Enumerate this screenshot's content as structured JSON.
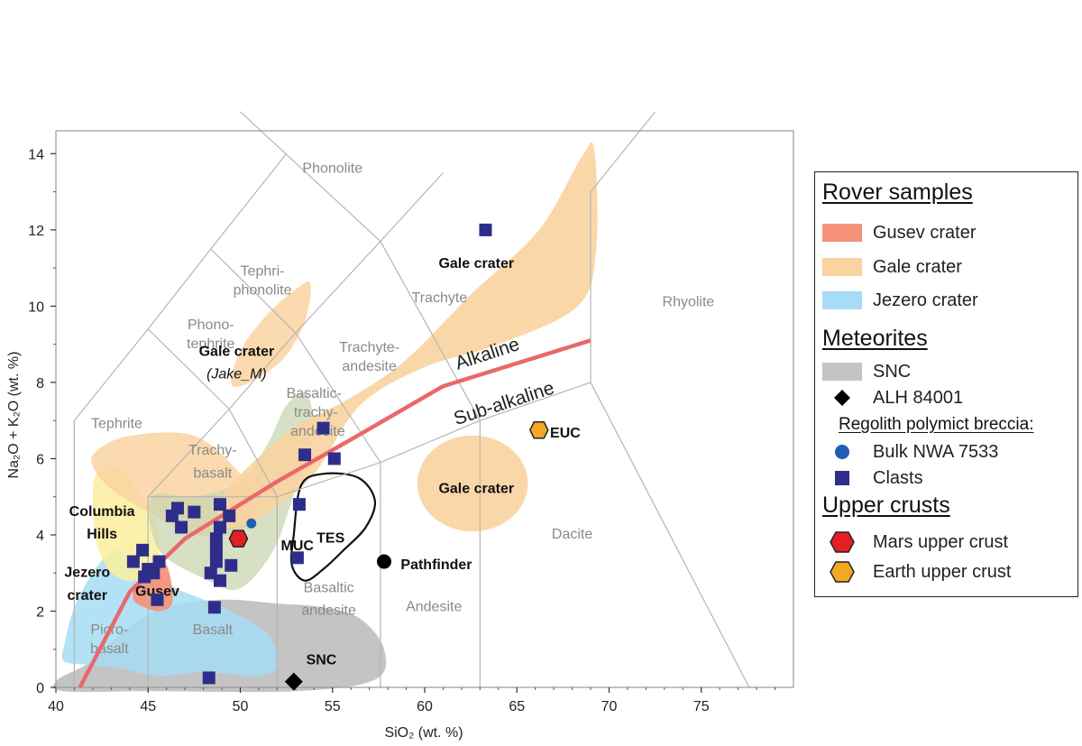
{
  "chart_data": {
    "type": "scatter",
    "xlabel": "SiO₂ (wt. %)",
    "ylabel": "Na₂O + K₂O (wt. %)",
    "xlim": [
      40,
      80
    ],
    "ylim": [
      0,
      14
    ],
    "x_ticks": [
      40,
      45,
      50,
      55,
      60,
      65,
      70,
      75
    ],
    "y_ticks": [
      0,
      2,
      4,
      6,
      8,
      10,
      12,
      14
    ],
    "tas_fields": [
      {
        "label": "Phonolite"
      },
      {
        "label": "Tephri-phonolite"
      },
      {
        "label": "Phono-tephrite"
      },
      {
        "label": "Tephrite"
      },
      {
        "label": "Trachyte"
      },
      {
        "label": "Trachyte-andesite"
      },
      {
        "label": "Basaltic-trachy-andesite"
      },
      {
        "label": "Trachy-basalt"
      },
      {
        "label": "Rhyolite"
      },
      {
        "label": "Dacite"
      },
      {
        "label": "Andesite"
      },
      {
        "label": "Basaltic andesite"
      },
      {
        "label": "Basalt"
      },
      {
        "label": "Picro-basalt"
      }
    ],
    "alkaline_divider": {
      "points": [
        [
          41.3,
          0
        ],
        [
          44,
          2.5
        ],
        [
          47,
          3.9
        ],
        [
          52,
          5.4
        ],
        [
          56,
          6.5
        ],
        [
          61,
          7.9
        ],
        [
          69,
          9.1
        ]
      ],
      "label_above": "Alkaline",
      "label_below": "Sub-alkaline"
    },
    "series": [
      {
        "name": "Clasts",
        "marker": "square",
        "color": "#2e2e8a",
        "points": [
          [
            63.3,
            12.0
          ],
          [
            54.5,
            6.8
          ],
          [
            53.5,
            6.1
          ],
          [
            55.1,
            6.0
          ],
          [
            53.2,
            4.8
          ],
          [
            46.6,
            4.7
          ],
          [
            46.3,
            4.5
          ],
          [
            47.5,
            4.6
          ],
          [
            48.9,
            4.8
          ],
          [
            49.4,
            4.5
          ],
          [
            46.8,
            4.2
          ],
          [
            48.9,
            4.2
          ],
          [
            48.7,
            3.9
          ],
          [
            48.7,
            3.6
          ],
          [
            48.7,
            3.3
          ],
          [
            49.5,
            3.2
          ],
          [
            44.7,
            3.6
          ],
          [
            44.2,
            3.3
          ],
          [
            45.0,
            3.1
          ],
          [
            45.6,
            3.3
          ],
          [
            45.3,
            3.0
          ],
          [
            44.8,
            2.9
          ],
          [
            48.4,
            3.0
          ],
          [
            48.9,
            2.8
          ],
          [
            45.5,
            2.3
          ],
          [
            48.6,
            2.1
          ],
          [
            53.1,
            3.4
          ],
          [
            48.3,
            0.25
          ]
        ]
      },
      {
        "name": "Bulk NWA 7533",
        "marker": "circle",
        "color": "#1f5fae",
        "points": [
          [
            50.6,
            4.3
          ]
        ]
      },
      {
        "name": "ALH 84001",
        "marker": "diamond",
        "color": "#000000",
        "points": [
          [
            52.9,
            0.15
          ]
        ]
      },
      {
        "name": "Mars upper crust",
        "marker": "hexagon",
        "color": "#e31e24",
        "points": [
          [
            49.9,
            3.9
          ]
        ]
      },
      {
        "name": "Earth upper crust",
        "marker": "hexagon",
        "color": "#f5a623",
        "points": [
          [
            66.2,
            6.75
          ]
        ]
      },
      {
        "name": "Pathfinder",
        "marker": "circle",
        "color": "#000000",
        "points": [
          [
            57.8,
            3.3
          ]
        ]
      }
    ],
    "regions": [
      {
        "name": "Gale crater",
        "label": "Gale crater"
      },
      {
        "name": "Gale crater (Jake_M)",
        "label": "Gale crater",
        "sublabel": "Jake_M"
      },
      {
        "name": "Gale crater",
        "label": "Gale crater"
      },
      {
        "name": "Columbia Hills",
        "label": "Columbia Hills"
      },
      {
        "name": "Jezero crater",
        "label": "Jezero crater"
      },
      {
        "name": "Gusev",
        "label": "Gusev"
      },
      {
        "name": "SNC",
        "label": "SNC"
      },
      {
        "name": "TES",
        "label": "TES"
      }
    ],
    "annotations": [
      "MUC",
      "EUC",
      "Pathfinder"
    ],
    "colors": {
      "gusev": "#f4937a",
      "gale": "#f9d3a0",
      "jezero": "#a6dcf5",
      "columbia": "#fbef9e",
      "snc": "#c4c4c4",
      "clasts": "#2e2e8a",
      "divider": "#e8696b",
      "field_lines": "#b5b5b5"
    },
    "legend": {
      "rover_heading": "Rover samples",
      "rover_items": [
        {
          "label": "Gusev crater",
          "color": "#f4937a"
        },
        {
          "label": "Gale crater",
          "color": "#f9d3a0"
        },
        {
          "label": "Jezero crater",
          "color": "#a6dcf5"
        }
      ],
      "meteorite_heading": "Meteorites",
      "meteorite_items": [
        {
          "label": "SNC",
          "color": "#c4c4c4"
        },
        {
          "label": "ALH 84001"
        }
      ],
      "breccia_heading": "Regolith polymict breccia:",
      "breccia_items": [
        {
          "label": "Bulk NWA 7533"
        },
        {
          "label": "Clasts"
        }
      ],
      "crust_heading": "Upper crusts",
      "crust_items": [
        {
          "label": "Mars upper crust",
          "color": "#e31e24"
        },
        {
          "label": "Earth upper crust",
          "color": "#f5a623"
        }
      ]
    }
  }
}
